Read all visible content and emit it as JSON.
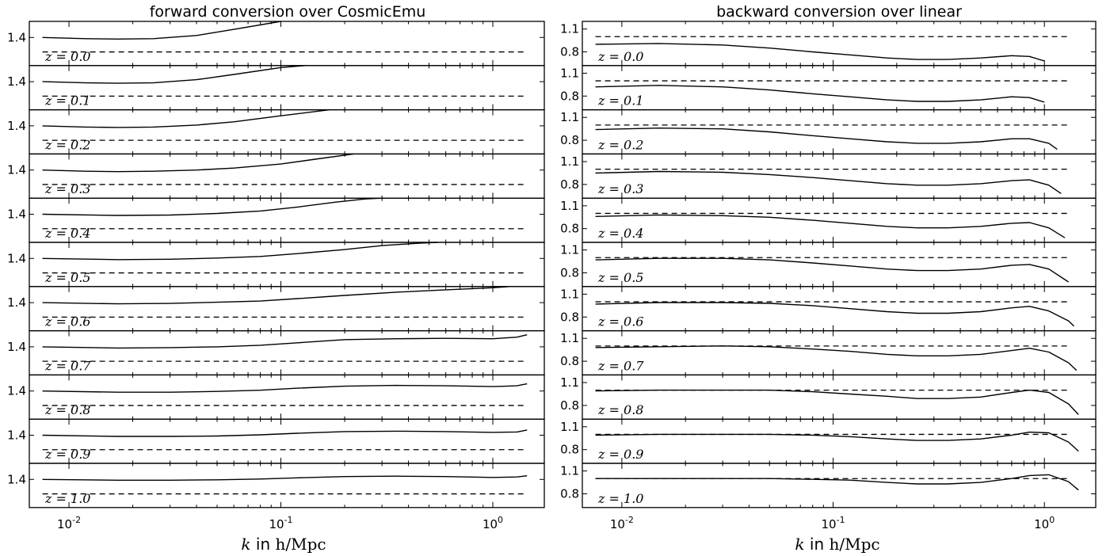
{
  "chart_data": [
    {
      "type": "line",
      "title": "forward conversion over CosmicEmu",
      "xlabel": "k in h/Mpc",
      "x_scale": "log",
      "xlim": [
        0.0065,
        1.75
      ],
      "x_ticks": [
        0.01,
        0.1,
        1.0
      ],
      "x_tick_labels": [
        "10-2",
        "10-1",
        "100"
      ],
      "y_tick_label": "1.4",
      "reference_line": "dashed horizontal line in each panel",
      "panels": [
        {
          "label": "z = 0.0",
          "x": [
            0.0075,
            0.012,
            0.017,
            0.025,
            0.04,
            0.06,
            0.1
          ],
          "y": [
            1.4,
            1.397,
            1.396,
            1.397,
            1.405,
            1.42,
            1.44
          ]
        },
        {
          "label": "z = 0.1",
          "x": [
            0.0075,
            0.012,
            0.017,
            0.025,
            0.04,
            0.06,
            0.1,
            0.13
          ],
          "y": [
            1.4,
            1.397,
            1.396,
            1.397,
            1.405,
            1.418,
            1.435,
            1.44
          ]
        },
        {
          "label": "z = 0.2",
          "x": [
            0.0075,
            0.012,
            0.017,
            0.025,
            0.04,
            0.06,
            0.1,
            0.17
          ],
          "y": [
            1.4,
            1.397,
            1.396,
            1.397,
            1.402,
            1.41,
            1.425,
            1.44
          ]
        },
        {
          "label": "z = 0.3",
          "x": [
            0.0075,
            0.012,
            0.017,
            0.025,
            0.04,
            0.06,
            0.1,
            0.15,
            0.22
          ],
          "y": [
            1.4,
            1.397,
            1.396,
            1.397,
            1.4,
            1.405,
            1.415,
            1.428,
            1.44
          ]
        },
        {
          "label": "z = 0.4",
          "x": [
            0.0075,
            0.017,
            0.03,
            0.05,
            0.08,
            0.12,
            0.18,
            0.25,
            0.3
          ],
          "y": [
            1.4,
            1.397,
            1.398,
            1.402,
            1.408,
            1.418,
            1.43,
            1.438,
            1.44
          ]
        },
        {
          "label": "z = 0.5",
          "x": [
            0.0075,
            0.017,
            0.03,
            0.05,
            0.08,
            0.12,
            0.2,
            0.3,
            0.45,
            0.55
          ],
          "y": [
            1.4,
            1.397,
            1.398,
            1.401,
            1.405,
            1.412,
            1.422,
            1.432,
            1.438,
            1.44
          ]
        },
        {
          "label": "z = 0.6",
          "x": [
            0.0075,
            0.017,
            0.03,
            0.05,
            0.08,
            0.12,
            0.2,
            0.35,
            0.6,
            1.0,
            1.2
          ],
          "y": [
            1.4,
            1.397,
            1.398,
            1.401,
            1.404,
            1.41,
            1.418,
            1.426,
            1.432,
            1.437,
            1.44
          ]
        },
        {
          "label": "z = 0.7",
          "x": [
            0.0075,
            0.017,
            0.03,
            0.05,
            0.08,
            0.12,
            0.2,
            0.35,
            0.6,
            1.0,
            1.3,
            1.45
          ],
          "y": [
            1.4,
            1.397,
            1.398,
            1.4,
            1.404,
            1.41,
            1.418,
            1.42,
            1.421,
            1.42,
            1.424,
            1.43
          ]
        },
        {
          "label": "z = 0.8",
          "x": [
            0.0075,
            0.017,
            0.03,
            0.05,
            0.08,
            0.12,
            0.2,
            0.35,
            0.6,
            1.0,
            1.3,
            1.45
          ],
          "y": [
            1.4,
            1.397,
            1.397,
            1.399,
            1.402,
            1.407,
            1.412,
            1.414,
            1.413,
            1.411,
            1.413,
            1.418
          ]
        },
        {
          "label": "z = 0.9",
          "x": [
            0.0075,
            0.017,
            0.03,
            0.05,
            0.08,
            0.12,
            0.2,
            0.35,
            0.6,
            1.0,
            1.3,
            1.45
          ],
          "y": [
            1.4,
            1.397,
            1.397,
            1.398,
            1.401,
            1.405,
            1.409,
            1.41,
            1.409,
            1.407,
            1.408,
            1.413
          ]
        },
        {
          "label": "z = 1.0",
          "x": [
            0.0075,
            0.017,
            0.03,
            0.05,
            0.08,
            0.12,
            0.2,
            0.35,
            0.6,
            1.0,
            1.3,
            1.45
          ],
          "y": [
            1.4,
            1.398,
            1.398,
            1.399,
            1.401,
            1.404,
            1.407,
            1.408,
            1.407,
            1.405,
            1.406,
            1.409
          ]
        }
      ]
    },
    {
      "type": "line",
      "title": "backward conversion over linear",
      "xlabel": "k in h/Mpc",
      "x_scale": "log",
      "xlim": [
        0.0065,
        1.75
      ],
      "x_ticks": [
        0.01,
        0.1,
        1.0
      ],
      "x_tick_labels": [
        "10-2",
        "10-1",
        "100"
      ],
      "y_tick_labels": [
        "1.1",
        "0.8"
      ],
      "reference_line": "dashed horizontal line in each panel",
      "panels": [
        {
          "label": "z = 0.0",
          "x": [
            0.0075,
            0.015,
            0.03,
            0.05,
            0.08,
            0.12,
            0.18,
            0.25,
            0.35,
            0.5,
            0.7,
            0.85,
            1.0
          ],
          "y": [
            0.9,
            0.91,
            0.89,
            0.85,
            0.8,
            0.76,
            0.72,
            0.7,
            0.7,
            0.72,
            0.75,
            0.74,
            0.68
          ]
        },
        {
          "label": "z = 0.1",
          "x": [
            0.0075,
            0.015,
            0.03,
            0.05,
            0.08,
            0.12,
            0.18,
            0.25,
            0.35,
            0.5,
            0.7,
            0.85,
            1.0
          ],
          "y": [
            0.92,
            0.94,
            0.92,
            0.88,
            0.83,
            0.79,
            0.75,
            0.73,
            0.73,
            0.75,
            0.79,
            0.78,
            0.72
          ]
        },
        {
          "label": "z = 0.2",
          "x": [
            0.0075,
            0.015,
            0.03,
            0.05,
            0.08,
            0.12,
            0.18,
            0.25,
            0.35,
            0.5,
            0.7,
            0.85,
            1.05,
            1.15
          ],
          "y": [
            0.94,
            0.96,
            0.95,
            0.91,
            0.86,
            0.82,
            0.78,
            0.76,
            0.76,
            0.78,
            0.82,
            0.82,
            0.76,
            0.68
          ]
        },
        {
          "label": "z = 0.3",
          "x": [
            0.0075,
            0.015,
            0.03,
            0.05,
            0.08,
            0.12,
            0.18,
            0.25,
            0.35,
            0.5,
            0.7,
            0.85,
            1.05,
            1.2
          ],
          "y": [
            0.95,
            0.97,
            0.96,
            0.93,
            0.89,
            0.85,
            0.81,
            0.79,
            0.79,
            0.81,
            0.85,
            0.86,
            0.79,
            0.68
          ]
        },
        {
          "label": "z = 0.4",
          "x": [
            0.0075,
            0.015,
            0.03,
            0.05,
            0.08,
            0.12,
            0.18,
            0.25,
            0.35,
            0.5,
            0.7,
            0.85,
            1.05,
            1.25
          ],
          "y": [
            0.96,
            0.98,
            0.97,
            0.95,
            0.91,
            0.87,
            0.83,
            0.81,
            0.81,
            0.83,
            0.87,
            0.88,
            0.81,
            0.68
          ]
        },
        {
          "label": "z = 0.5",
          "x": [
            0.0075,
            0.015,
            0.03,
            0.05,
            0.08,
            0.12,
            0.18,
            0.25,
            0.35,
            0.5,
            0.7,
            0.85,
            1.05,
            1.3
          ],
          "y": [
            0.97,
            0.99,
            0.99,
            0.97,
            0.93,
            0.89,
            0.85,
            0.83,
            0.83,
            0.85,
            0.9,
            0.91,
            0.85,
            0.68
          ]
        },
        {
          "label": "z = 0.6",
          "x": [
            0.0075,
            0.015,
            0.03,
            0.05,
            0.08,
            0.12,
            0.18,
            0.25,
            0.35,
            0.5,
            0.7,
            0.85,
            1.05,
            1.3,
            1.38
          ],
          "y": [
            0.97,
            0.99,
            0.99,
            0.98,
            0.95,
            0.91,
            0.87,
            0.85,
            0.85,
            0.87,
            0.92,
            0.94,
            0.88,
            0.75,
            0.68
          ]
        },
        {
          "label": "z = 0.7",
          "x": [
            0.0075,
            0.015,
            0.03,
            0.05,
            0.08,
            0.12,
            0.18,
            0.25,
            0.35,
            0.5,
            0.7,
            0.85,
            1.05,
            1.3,
            1.42
          ],
          "y": [
            0.98,
            0.99,
            1.0,
            0.99,
            0.96,
            0.93,
            0.89,
            0.87,
            0.87,
            0.89,
            0.94,
            0.97,
            0.92,
            0.78,
            0.68
          ]
        },
        {
          "label": "z = 0.8",
          "x": [
            0.0075,
            0.015,
            0.03,
            0.05,
            0.08,
            0.12,
            0.18,
            0.25,
            0.35,
            0.5,
            0.7,
            0.85,
            1.05,
            1.3,
            1.45
          ],
          "y": [
            0.99,
            1.0,
            1.0,
            1.0,
            0.98,
            0.95,
            0.92,
            0.89,
            0.89,
            0.91,
            0.97,
            1.0,
            0.97,
            0.82,
            0.68
          ]
        },
        {
          "label": "z = 0.9",
          "x": [
            0.0075,
            0.015,
            0.03,
            0.05,
            0.08,
            0.12,
            0.18,
            0.25,
            0.35,
            0.5,
            0.7,
            0.85,
            1.05,
            1.3,
            1.45
          ],
          "y": [
            0.99,
            1.0,
            1.0,
            1.0,
            0.99,
            0.97,
            0.94,
            0.92,
            0.92,
            0.94,
            0.99,
            1.03,
            1.02,
            0.9,
            0.78
          ]
        },
        {
          "label": "z = 1.0",
          "x": [
            0.0075,
            0.015,
            0.03,
            0.05,
            0.08,
            0.12,
            0.18,
            0.25,
            0.35,
            0.5,
            0.7,
            0.85,
            1.05,
            1.3,
            1.45
          ],
          "y": [
            1.0,
            1.0,
            1.0,
            1.0,
            0.99,
            0.98,
            0.95,
            0.93,
            0.93,
            0.95,
            1.0,
            1.04,
            1.05,
            0.96,
            0.85
          ]
        }
      ]
    }
  ]
}
